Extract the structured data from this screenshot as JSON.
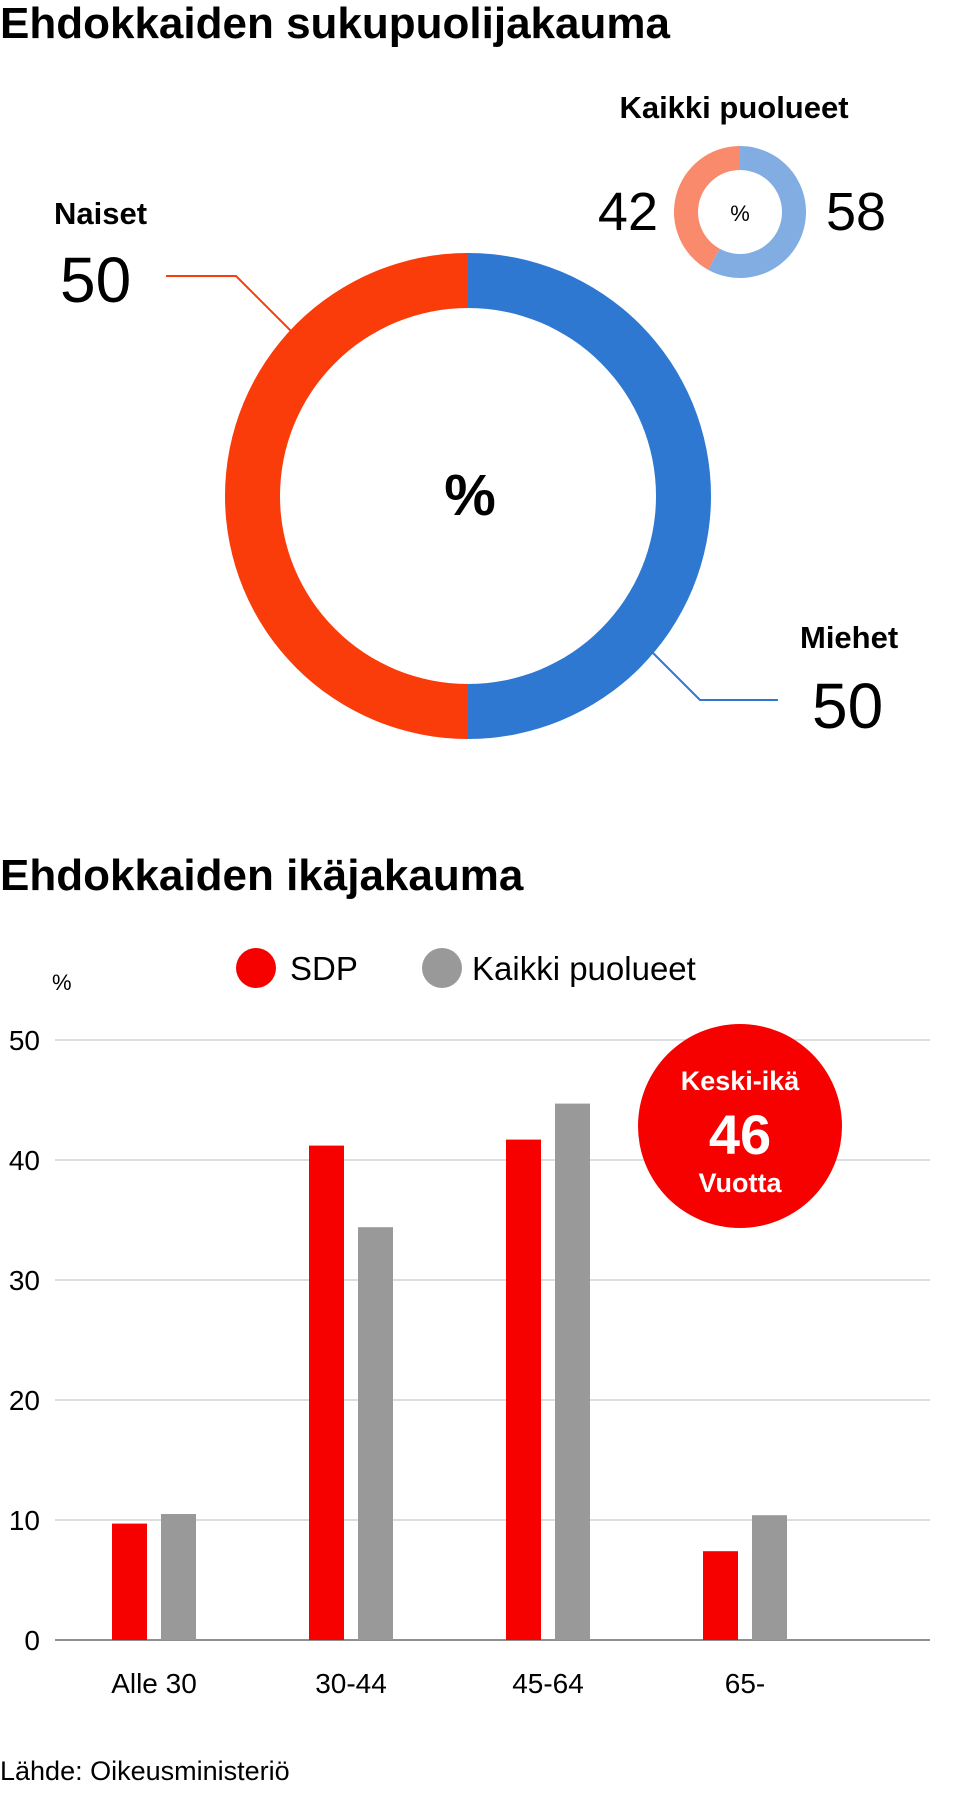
{
  "colors": {
    "women": "#fa3c0a",
    "men": "#2e78d2",
    "women_light": "#f98a6c",
    "men_light": "#82ade2",
    "sdp": "#f70000",
    "all": "#999999",
    "grid": "#d4d4d4",
    "badge": "#f70000"
  },
  "gender_section": {
    "title": "Ehdokkaiden sukupuolijakauma",
    "percent_symbol": "%"
  },
  "age_section": {
    "title": "Ehdokkaiden ikäjakauma",
    "badge": {
      "line1": "Keski-ikä",
      "value": "46",
      "line3": "Vuotta"
    }
  },
  "source": "Lähde: Oikeusministeriö",
  "chart_data": [
    {
      "type": "pie",
      "variant": "donut",
      "title": "",
      "center_label": "%",
      "slices": [
        {
          "label": "Naiset",
          "value": 50
        },
        {
          "label": "Miehet",
          "value": 50
        }
      ]
    },
    {
      "type": "pie",
      "variant": "donut",
      "title": "Kaikki puolueet",
      "center_label": "%",
      "slices": [
        {
          "label": "",
          "value": 42
        },
        {
          "label": "",
          "value": 58
        }
      ]
    },
    {
      "type": "bar",
      "title": "Ehdokkaiden ikäjakauma",
      "ylabel": "%",
      "xlabel": "",
      "categories": [
        "Alle 30",
        "30-44",
        "45-64",
        "65-"
      ],
      "series": [
        {
          "name": "SDP",
          "values": [
            9.7,
            41.2,
            41.7,
            7.4
          ]
        },
        {
          "name": "Kaikki puolueet",
          "values": [
            10.5,
            34.4,
            44.7,
            10.4
          ]
        }
      ],
      "ylim": [
        0,
        50
      ],
      "yticks": [
        0,
        10,
        20,
        30,
        40,
        50
      ],
      "grid": true,
      "legend": "top"
    }
  ]
}
